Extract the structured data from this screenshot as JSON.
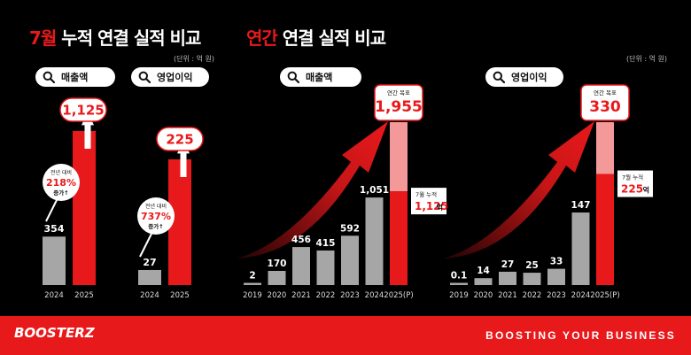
{
  "header_left": {
    "accent": "7월",
    "rest": " 누적 연결 실적 비교",
    "unit": "(단위 : 억 원)"
  },
  "header_right": {
    "accent": "연간",
    "rest": " 연결 실적 비교",
    "unit": "(단위 : 억 원)"
  },
  "search_icon": "search-icon",
  "colors": {
    "red": "#e8191b",
    "gray": "#a6a6a6",
    "pink": "#f4999a",
    "bg": "#000000"
  },
  "monthly_sales": {
    "pill": "매출액",
    "label_line1": "전년 대비",
    "label_pct": "218%",
    "label_line3": "증가↑"
  },
  "monthly_op": {
    "pill": "영업이익",
    "label_line1": "전년 대비",
    "label_pct": "737%",
    "label_line3": "증가↑"
  },
  "annual_sales": {
    "pill": "매출액",
    "target_label": "연간 목표",
    "target_value": "1,955",
    "ytd_line1": "7월 누적",
    "ytd_value": "1,125",
    "ytd_unit": "억"
  },
  "annual_op": {
    "pill": "영업이익",
    "target_label": "연간 목표",
    "target_value": "330",
    "ytd_line1": "7월 누적",
    "ytd_value": "225",
    "ytd_unit": "억"
  },
  "footer": {
    "logo": "BOOSTERZ",
    "slogan": "BOOSTING YOUR BUSINESS"
  },
  "chart_data": [
    {
      "type": "bar",
      "title": "매출액",
      "categories": [
        "2024",
        "2025"
      ],
      "values": [
        354,
        1125
      ],
      "value_labels": [
        "354",
        "1,125"
      ]
    },
    {
      "type": "bar",
      "title": "영업이익",
      "categories": [
        "2024",
        "2025"
      ],
      "values": [
        27,
        225
      ],
      "value_labels": [
        "27",
        "225"
      ]
    },
    {
      "type": "bar",
      "title": "매출액",
      "categories": [
        "2019",
        "2020",
        "2021",
        "2022",
        "2023",
        "2024",
        "2025(P)"
      ],
      "values": [
        2,
        170,
        456,
        415,
        592,
        1051,
        1955
      ],
      "value_labels": [
        "2",
        "170",
        "456",
        "415",
        "592",
        "1,051",
        "1,955"
      ],
      "ytd_2025": 1125
    },
    {
      "type": "bar",
      "title": "영업이익",
      "categories": [
        "2019",
        "2020",
        "2021",
        "2022",
        "2023",
        "2024",
        "2025(P)"
      ],
      "values": [
        0.1,
        14,
        27,
        25,
        33,
        147,
        330
      ],
      "value_labels": [
        "0.1",
        "14",
        "27",
        "25",
        "33",
        "147",
        "330"
      ],
      "ytd_2025": 225
    }
  ]
}
